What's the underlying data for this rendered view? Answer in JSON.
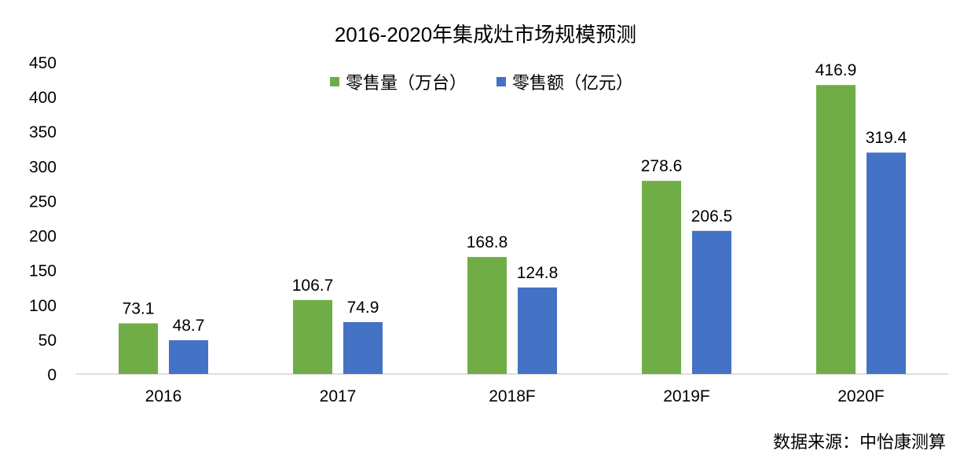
{
  "chart_data": {
    "type": "bar",
    "title": "2016-2020年集成灶市场规模预测",
    "categories": [
      "2016",
      "2017",
      "2018F",
      "2019F",
      "2020F"
    ],
    "series": [
      {
        "name": "零售量（万台）",
        "color": "#70ad47",
        "values": [
          73.1,
          106.7,
          168.8,
          278.6,
          416.9
        ]
      },
      {
        "name": "零售额（亿元）",
        "color": "#4472c4",
        "values": [
          48.7,
          74.9,
          124.8,
          206.5,
          319.4
        ]
      }
    ],
    "ylim": [
      0,
      450
    ],
    "yticks": [
      0,
      50,
      100,
      150,
      200,
      250,
      300,
      350,
      400,
      450
    ],
    "grid": false,
    "legend_position": "top-center",
    "source": "数据来源：中怡康测算"
  }
}
